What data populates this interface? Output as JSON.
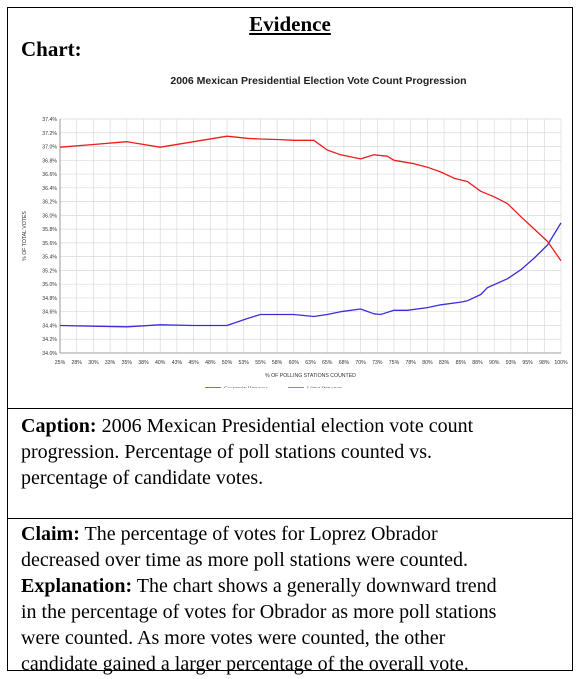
{
  "heading": "Evidence",
  "chart_label": "Chart:",
  "chart_data": {
    "type": "line",
    "title": "2006 Mexican Presidential Election Vote Count Progression",
    "xlabel": "% OF POLLING STATIONS COUNTED",
    "ylabel": "% OF TOTAL VOTES",
    "xlim": [
      25,
      100
    ],
    "ylim": [
      34.0,
      37.4
    ],
    "grid": true,
    "legend_position": "bottom",
    "x_ticks": [
      "25%",
      "28%",
      "30%",
      "33%",
      "35%",
      "38%",
      "40%",
      "43%",
      "45%",
      "48%",
      "50%",
      "53%",
      "55%",
      "58%",
      "60%",
      "63%",
      "65%",
      "68%",
      "70%",
      "73%",
      "75%",
      "78%",
      "80%",
      "83%",
      "85%",
      "88%",
      "90%",
      "93%",
      "95%",
      "98%",
      "100%"
    ],
    "y_ticks": [
      "34.0%",
      "34.2%",
      "34.4%",
      "34.6%",
      "34.8%",
      "35.0%",
      "35.2%",
      "35.4%",
      "35.6%",
      "35.8%",
      "36.0%",
      "36.2%",
      "36.4%",
      "36.6%",
      "36.8%",
      "37.0%",
      "37.2%",
      "37.4%"
    ],
    "series": [
      {
        "name": "Calderón Hinojosa",
        "color": "#3a2fd8",
        "points": [
          [
            25,
            34.4
          ],
          [
            30,
            34.39
          ],
          [
            35,
            34.38
          ],
          [
            40,
            34.41
          ],
          [
            45,
            34.4
          ],
          [
            50,
            34.4
          ],
          [
            53,
            34.5
          ],
          [
            55,
            34.56
          ],
          [
            58,
            34.56
          ],
          [
            60,
            34.56
          ],
          [
            63,
            34.53
          ],
          [
            65,
            34.56
          ],
          [
            67,
            34.6
          ],
          [
            70,
            34.64
          ],
          [
            72,
            34.57
          ],
          [
            73,
            34.56
          ],
          [
            75,
            34.62
          ],
          [
            77,
            34.62
          ],
          [
            80,
            34.66
          ],
          [
            82,
            34.7
          ],
          [
            85,
            34.74
          ],
          [
            86,
            34.76
          ],
          [
            88,
            34.85
          ],
          [
            89,
            34.95
          ],
          [
            92,
            35.08
          ],
          [
            94,
            35.21
          ],
          [
            96,
            35.38
          ],
          [
            98,
            35.57
          ],
          [
            99,
            35.73
          ],
          [
            100,
            35.89
          ]
        ]
      },
      {
        "name": "López Obrador",
        "color": "#ee1c1c",
        "points": [
          [
            25,
            36.99
          ],
          [
            30,
            37.03
          ],
          [
            35,
            37.07
          ],
          [
            40,
            36.99
          ],
          [
            45,
            37.07
          ],
          [
            50,
            37.15
          ],
          [
            53,
            37.12
          ],
          [
            55,
            37.11
          ],
          [
            58,
            37.1
          ],
          [
            60,
            37.09
          ],
          [
            63,
            37.09
          ],
          [
            65,
            36.95
          ],
          [
            67,
            36.88
          ],
          [
            70,
            36.82
          ],
          [
            72,
            36.88
          ],
          [
            74,
            36.86
          ],
          [
            75,
            36.8
          ],
          [
            78,
            36.75
          ],
          [
            80,
            36.7
          ],
          [
            82,
            36.63
          ],
          [
            84,
            36.54
          ],
          [
            86,
            36.49
          ],
          [
            88,
            36.35
          ],
          [
            90,
            36.27
          ],
          [
            92,
            36.17
          ],
          [
            94,
            35.98
          ],
          [
            96,
            35.8
          ],
          [
            98,
            35.62
          ],
          [
            99,
            35.48
          ],
          [
            100,
            35.34
          ]
        ]
      }
    ]
  },
  "caption_label": "Caption:",
  "caption_lines": [
    " 2006 Mexican Presidential election vote count",
    "progression. Percentage of poll stations counted vs.",
    "percentage of candidate votes."
  ],
  "claim_label": "Claim:",
  "claim_lines": [
    " The percentage of votes for Loprez Obrador",
    "decreased over time as more poll stations were counted."
  ],
  "explanation_label": "Explanation:",
  "explanation_lines": [
    " The chart shows a generally downward trend",
    "in the percentage of votes for Obrador as more poll stations",
    "were counted. As more votes were counted, the other",
    "candidate gained a larger percentage of the overall vote."
  ]
}
